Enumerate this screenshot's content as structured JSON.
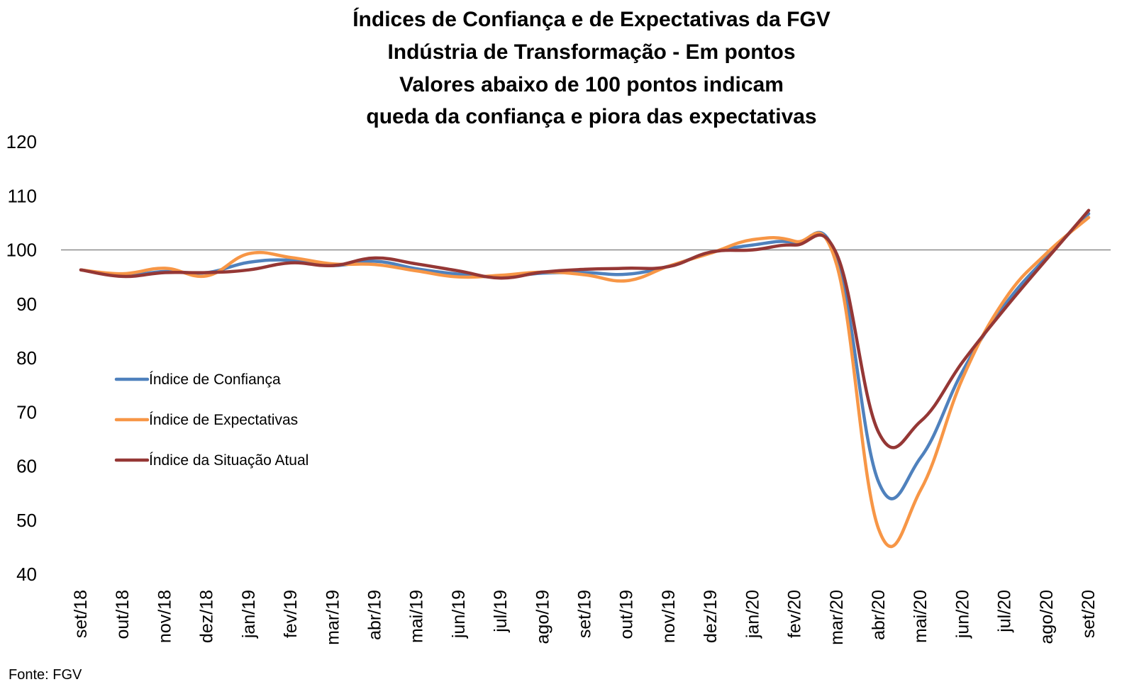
{
  "chart_data": {
    "type": "line",
    "title": [
      "Índices de Confiança e de Expectativas da FGV",
      "Indústria de Transformação - Em pontos",
      "Valores abaixo de 100 pontos indicam",
      "queda da confiança e piora das expectativas"
    ],
    "xlabel": "",
    "ylabel": "",
    "categories": [
      "set/18",
      "out/18",
      "nov/18",
      "dez/18",
      "jan/19",
      "fev/19",
      "mar/19",
      "abr/19",
      "mai/19",
      "jun/19",
      "jul/19",
      "ago/19",
      "set/19",
      "out/19",
      "nov/19",
      "dez/19",
      "jan/20",
      "fev/20",
      "mar/20",
      "abr/20",
      "mai/20",
      "jun/20",
      "jul/20",
      "ago/20",
      "set/20"
    ],
    "ylim": [
      40,
      120
    ],
    "yticks": [
      40,
      50,
      60,
      70,
      80,
      90,
      100,
      110,
      120
    ],
    "reference_line": 100,
    "grid": false,
    "legend_position": "left",
    "series": [
      {
        "name": "Índice de Confiança",
        "color": "#4F81BD",
        "values": [
          96.3,
          95.3,
          96.0,
          95.8,
          97.7,
          98.1,
          97.1,
          97.9,
          96.5,
          95.5,
          95.0,
          95.7,
          95.8,
          95.5,
          97.0,
          99.5,
          100.9,
          101.4,
          98.5,
          57.0,
          61.6,
          77.6,
          89.8,
          98.7,
          106.7
        ]
      },
      {
        "name": "Índice de Expectativas",
        "color": "#F79646",
        "values": [
          96.3,
          95.6,
          96.6,
          95.2,
          99.3,
          98.6,
          97.4,
          97.3,
          96.1,
          95.0,
          95.3,
          95.9,
          95.4,
          94.3,
          97.0,
          99.4,
          101.9,
          101.6,
          97.2,
          48.3,
          55.6,
          76.3,
          90.8,
          99.4,
          106.0
        ]
      },
      {
        "name": "Índice da Situação Atual",
        "color": "#953735",
        "values": [
          96.3,
          95.1,
          95.8,
          95.8,
          96.3,
          97.6,
          97.1,
          98.5,
          97.4,
          96.1,
          94.8,
          95.9,
          96.4,
          96.6,
          96.9,
          99.6,
          100.0,
          100.9,
          99.2,
          66.2,
          68.3,
          79.3,
          89.1,
          98.3,
          107.3
        ]
      }
    ],
    "source": "Fonte: FGV"
  }
}
